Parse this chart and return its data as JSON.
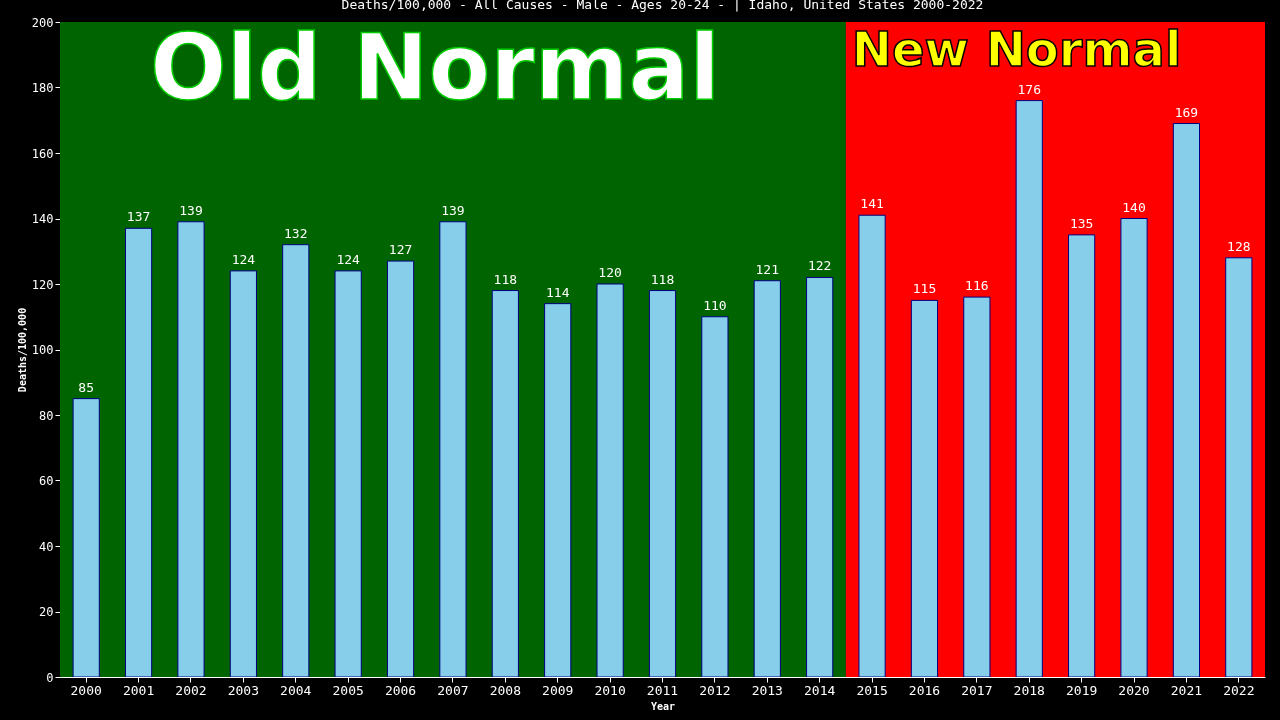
{
  "chart_data": {
    "type": "bar",
    "title": "Deaths/100,000 - All Causes - Male - Ages 20-24 -  | Idaho, United States 2000-2022",
    "xlabel": "Year",
    "ylabel": "Deaths/100,000",
    "categories": [
      "2000",
      "2001",
      "2002",
      "2003",
      "2004",
      "2005",
      "2006",
      "2007",
      "2008",
      "2009",
      "2010",
      "2011",
      "2012",
      "2013",
      "2014",
      "2015",
      "2016",
      "2017",
      "2018",
      "2019",
      "2020",
      "2021",
      "2022"
    ],
    "values": [
      85,
      137,
      139,
      124,
      132,
      124,
      127,
      139,
      118,
      114,
      120,
      118,
      110,
      121,
      122,
      141,
      115,
      116,
      176,
      135,
      140,
      169,
      128
    ],
    "color": "#87ceeb",
    "ylim": [
      0,
      200
    ],
    "yticks": [
      0,
      20,
      40,
      60,
      80,
      100,
      120,
      140,
      160,
      180,
      200
    ],
    "data_labels": true,
    "bands": [
      {
        "axis": "x",
        "from": "2000",
        "to": "2014",
        "label": "Old Normal",
        "color": "#006400"
      },
      {
        "axis": "x",
        "from": "2015",
        "to": "2022",
        "label": "New Normal",
        "color": "#ff0000"
      }
    ]
  }
}
